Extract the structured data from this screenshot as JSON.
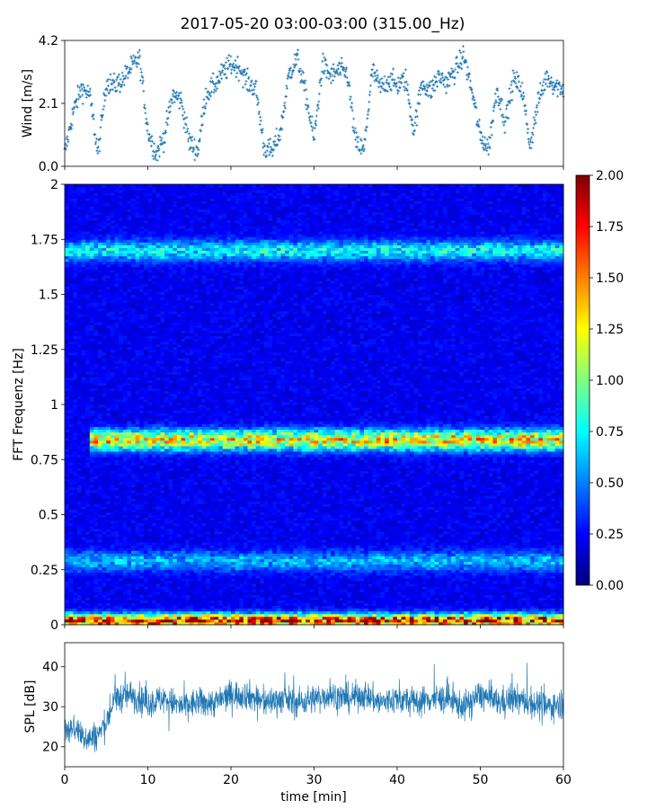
{
  "title": "2017-05-20 03:00-03:00 (315.00_Hz)",
  "chart_data": [
    {
      "type": "scatter",
      "panel": "wind",
      "xlabel": "",
      "ylabel": "Wind [m/s]",
      "xlim": [
        0,
        60
      ],
      "ylim": [
        0,
        4.2
      ],
      "yticks": [
        0.0,
        2.1,
        4.2
      ],
      "ytick_labels": [
        "0.0",
        "2.1",
        "4.2"
      ],
      "marker": "+",
      "color": "#1f77b4",
      "series": [
        {
          "x": [
            0,
            1,
            2,
            3,
            4,
            5,
            6,
            7,
            8,
            9,
            10,
            11,
            12,
            13,
            14,
            15,
            16,
            17,
            18,
            19,
            20,
            21,
            22,
            23,
            24,
            25,
            26,
            27,
            28,
            29,
            30,
            31,
            32,
            33,
            34,
            35,
            36,
            37,
            38,
            39,
            40,
            41,
            42,
            43,
            44,
            45,
            46,
            47,
            48,
            49,
            50,
            51,
            52,
            53,
            54,
            55,
            56,
            57,
            58,
            59,
            60
          ],
          "y": [
            0.4,
            1.8,
            2.6,
            2.4,
            0.4,
            2.8,
            2.7,
            2.9,
            3.3,
            3.6,
            1.2,
            0.4,
            1.0,
            2.4,
            2.2,
            0.8,
            0.5,
            2.4,
            2.7,
            3.1,
            3.4,
            3.3,
            2.8,
            2.6,
            0.6,
            0.5,
            1.2,
            3.1,
            3.6,
            2.4,
            0.9,
            3.4,
            3.0,
            3.2,
            3.1,
            0.8,
            0.5,
            3.2,
            2.6,
            2.9,
            2.7,
            2.9,
            1.2,
            2.8,
            2.5,
            3.0,
            2.8,
            3.2,
            3.7,
            2.5,
            1.0,
            0.6,
            2.6,
            1.5,
            2.9,
            2.6,
            0.7,
            2.2,
            3.0,
            2.7,
            2.6
          ]
        }
      ]
    },
    {
      "type": "heatmap",
      "panel": "spectrogram",
      "xlabel": "",
      "ylabel": "FFT Frequenz [Hz]",
      "xlim": [
        0,
        60
      ],
      "ylim": [
        0,
        2
      ],
      "yticks": [
        0,
        0.25,
        0.5,
        0.75,
        1,
        1.25,
        1.5,
        1.75,
        2
      ],
      "ytick_labels": [
        "0",
        "0.25",
        "0.5",
        "0.75",
        "1",
        "1.25",
        "1.5",
        "1.75",
        "2"
      ],
      "colormap": "jet",
      "colorbar": {
        "range": [
          0.0,
          2.0
        ],
        "ticks": [
          0.0,
          0.25,
          0.5,
          0.75,
          1.0,
          1.25,
          1.5,
          1.75,
          2.0
        ],
        "tick_labels": [
          "0.00",
          "0.25",
          "0.50",
          "0.75",
          "1.00",
          "1.25",
          "1.50",
          "1.75",
          "2.00"
        ]
      },
      "features": [
        {
          "frequency_hz": 0.84,
          "x_range": [
            3,
            60
          ],
          "level": 1.1
        },
        {
          "frequency_hz": 1.7,
          "x_range": [
            0,
            60
          ],
          "level": 0.55
        },
        {
          "frequency_hz": 0.02,
          "x_range": [
            0,
            60
          ],
          "level": 1.6
        },
        {
          "frequency_hz": 0.29,
          "x_range": [
            0,
            60
          ],
          "level": 0.4
        }
      ]
    },
    {
      "type": "line",
      "panel": "spl",
      "xlabel": "time [min]",
      "ylabel": "SPL [dB]",
      "xlim": [
        0,
        60
      ],
      "ylim": [
        15,
        46
      ],
      "xticks": [
        0,
        10,
        20,
        30,
        40,
        50,
        60
      ],
      "xtick_labels": [
        "0",
        "10",
        "20",
        "30",
        "40",
        "50",
        "60"
      ],
      "yticks": [
        20,
        30,
        40
      ],
      "ytick_labels": [
        "20",
        "30",
        "40"
      ],
      "color": "#1f77b4",
      "series": [
        {
          "x": [
            0,
            1,
            2,
            3,
            4,
            5,
            6,
            8,
            10,
            12,
            14,
            16,
            18,
            20,
            22,
            24,
            26,
            28,
            30,
            32,
            34,
            36,
            38,
            40,
            42,
            44,
            46,
            48,
            50,
            52,
            54,
            56,
            58,
            60
          ],
          "y": [
            24,
            25,
            23,
            22,
            23,
            26,
            32,
            33,
            31,
            32,
            30,
            31,
            31,
            33,
            33,
            31,
            32,
            31,
            32,
            33,
            32,
            33,
            31,
            32,
            31,
            32,
            32,
            30,
            33,
            31,
            32,
            31,
            30,
            31
          ]
        }
      ]
    }
  ]
}
